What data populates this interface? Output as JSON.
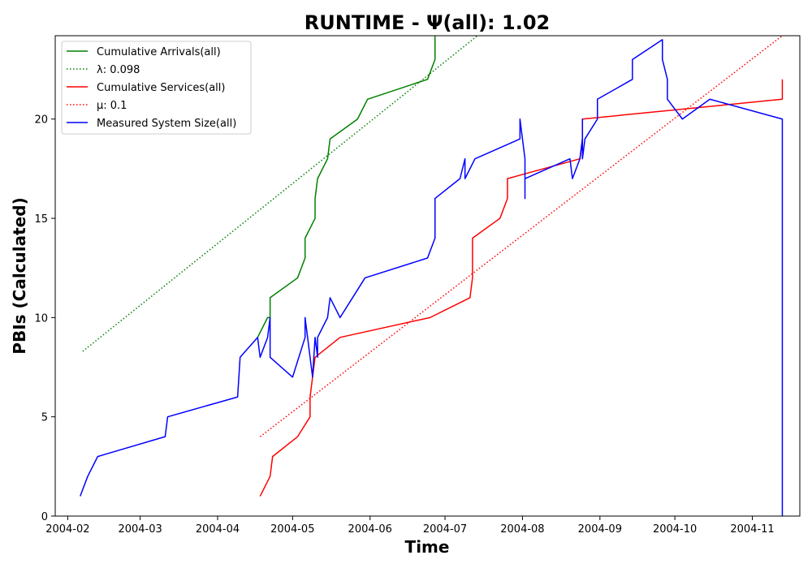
{
  "chart_data": {
    "type": "line",
    "title": "RUNTIME -  Ψ(all): 1.02",
    "xlabel": "Time",
    "ylabel": "PBIs (Calculated)",
    "xlim": [
      "2004-01-27",
      "2004-11-20"
    ],
    "ylim": [
      0,
      24.2
    ],
    "x_ticks": [
      "2004-02",
      "2004-03",
      "2004-04",
      "2004-05",
      "2004-06",
      "2004-07",
      "2004-08",
      "2004-09",
      "2004-10",
      "2004-11"
    ],
    "y_ticks": [
      0,
      5,
      10,
      15,
      20
    ],
    "grid": false,
    "legend_position": "top-left",
    "series": [
      {
        "name": "Cumulative Arrivals(all)",
        "color": "#008000",
        "style": "solid",
        "points": [
          [
            "2004-04-17",
            9
          ],
          [
            "2004-04-21",
            10
          ],
          [
            "2004-04-22",
            10
          ],
          [
            "2004-04-22",
            11
          ],
          [
            "2004-05-03",
            12
          ],
          [
            "2004-05-06",
            13
          ],
          [
            "2004-05-06",
            14
          ],
          [
            "2004-05-10",
            15
          ],
          [
            "2004-05-10",
            16
          ],
          [
            "2004-05-11",
            17
          ],
          [
            "2004-05-15",
            18
          ],
          [
            "2004-05-16",
            19
          ],
          [
            "2004-05-27",
            20
          ],
          [
            "2004-05-31",
            21
          ],
          [
            "2004-06-24",
            22
          ],
          [
            "2004-06-27",
            23
          ],
          [
            "2004-06-27",
            24.2
          ]
        ]
      },
      {
        "name": "λ: 0.098",
        "color": "#008000",
        "style": "dotted",
        "points": [
          [
            "2004-02-07",
            8.3
          ],
          [
            "2004-07-14",
            24.2
          ]
        ]
      },
      {
        "name": "Cumulative Services(all)",
        "color": "#ff0000",
        "style": "solid",
        "points": [
          [
            "2004-04-18",
            1
          ],
          [
            "2004-04-22",
            2
          ],
          [
            "2004-04-23",
            3
          ],
          [
            "2004-05-03",
            4
          ],
          [
            "2004-05-08",
            5
          ],
          [
            "2004-05-08",
            6
          ],
          [
            "2004-05-09",
            7
          ],
          [
            "2004-05-10",
            8
          ],
          [
            "2004-05-20",
            9
          ],
          [
            "2004-06-25",
            10
          ],
          [
            "2004-07-11",
            11
          ],
          [
            "2004-07-12",
            12
          ],
          [
            "2004-07-12",
            14
          ],
          [
            "2004-07-23",
            15
          ],
          [
            "2004-07-26",
            16
          ],
          [
            "2004-07-26",
            17
          ],
          [
            "2004-08-24",
            18
          ],
          [
            "2004-08-25",
            19
          ],
          [
            "2004-08-25",
            20
          ],
          [
            "2004-11-13",
            21
          ],
          [
            "2004-11-13",
            22
          ]
        ]
      },
      {
        "name": "μ: 0.1",
        "color": "#ff0000",
        "style": "dotted",
        "points": [
          [
            "2004-04-18",
            4
          ],
          [
            "2004-11-13",
            24.2
          ]
        ]
      },
      {
        "name": "Measured System Size(all)",
        "color": "#0000ff",
        "style": "solid",
        "points": [
          [
            "2004-02-06",
            1
          ],
          [
            "2004-02-09",
            2
          ],
          [
            "2004-02-13",
            3
          ],
          [
            "2004-03-11",
            4
          ],
          [
            "2004-03-12",
            5
          ],
          [
            "2004-04-09",
            6
          ],
          [
            "2004-04-10",
            8
          ],
          [
            "2004-04-17",
            9
          ],
          [
            "2004-04-18",
            8
          ],
          [
            "2004-04-21",
            9
          ],
          [
            "2004-04-22",
            10
          ],
          [
            "2004-04-22",
            8
          ],
          [
            "2004-05-01",
            7
          ],
          [
            "2004-05-06",
            9
          ],
          [
            "2004-05-06",
            10
          ],
          [
            "2004-05-07",
            9
          ],
          [
            "2004-05-08",
            8
          ],
          [
            "2004-05-09",
            7
          ],
          [
            "2004-05-10",
            9
          ],
          [
            "2004-05-11",
            8
          ],
          [
            "2004-05-11",
            9
          ],
          [
            "2004-05-15",
            10
          ],
          [
            "2004-05-16",
            11
          ],
          [
            "2004-05-20",
            10
          ],
          [
            "2004-05-30",
            12
          ],
          [
            "2004-06-24",
            13
          ],
          [
            "2004-06-27",
            14
          ],
          [
            "2004-06-27",
            16
          ],
          [
            "2004-07-07",
            17
          ],
          [
            "2004-07-09",
            18
          ],
          [
            "2004-07-09",
            17
          ],
          [
            "2004-07-13",
            18
          ],
          [
            "2004-07-31",
            19
          ],
          [
            "2004-07-31",
            20
          ],
          [
            "2004-08-01",
            19
          ],
          [
            "2004-08-02",
            18
          ],
          [
            "2004-08-02",
            16
          ],
          [
            "2004-08-02",
            17
          ],
          [
            "2004-08-20",
            18
          ],
          [
            "2004-08-21",
            17
          ],
          [
            "2004-08-24",
            18
          ],
          [
            "2004-08-25",
            19
          ],
          [
            "2004-08-25",
            20
          ],
          [
            "2004-08-25",
            18
          ],
          [
            "2004-08-26",
            19
          ],
          [
            "2004-08-31",
            20
          ],
          [
            "2004-08-31",
            21
          ],
          [
            "2004-09-14",
            22
          ],
          [
            "2004-09-14",
            23
          ],
          [
            "2004-09-26",
            24
          ],
          [
            "2004-09-26",
            23
          ],
          [
            "2004-09-28",
            22
          ],
          [
            "2004-09-28",
            21
          ],
          [
            "2004-10-04",
            20
          ],
          [
            "2004-10-15",
            21
          ],
          [
            "2004-11-13",
            20
          ],
          [
            "2004-11-13",
            0
          ]
        ]
      }
    ]
  }
}
